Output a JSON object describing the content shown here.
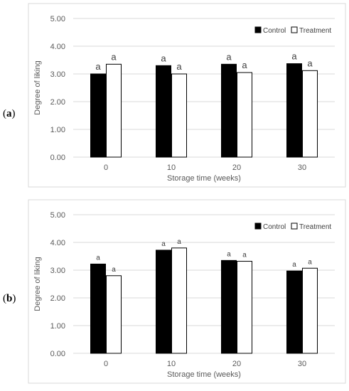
{
  "panels": [
    {
      "label": "a"
    },
    {
      "label": "b"
    }
  ],
  "chart_data": [
    {
      "type": "bar",
      "categories": [
        "0",
        "10",
        "20",
        "30"
      ],
      "series": [
        {
          "name": "Control",
          "values": [
            3.0,
            3.3,
            3.35,
            3.37
          ],
          "labels": [
            "a",
            "a",
            "a",
            "a"
          ],
          "color": "#000000"
        },
        {
          "name": "Treatment",
          "values": [
            3.35,
            3.0,
            3.05,
            3.12
          ],
          "labels": [
            "a",
            "a",
            "a",
            "a"
          ],
          "color": "#ffffff"
        }
      ],
      "yticks": [
        "0.00",
        "1.00",
        "2.00",
        "3.00",
        "4.00",
        "5.00"
      ],
      "xlabel": "Storage time (weeks)",
      "ylabel": "Degree of liking",
      "ylim": [
        0,
        5
      ],
      "grid": true,
      "legend": "top-right"
    },
    {
      "type": "bar",
      "categories": [
        "0",
        "10",
        "20",
        "30"
      ],
      "series": [
        {
          "name": "Control",
          "values": [
            3.22,
            3.72,
            3.35,
            2.97
          ],
          "labels": [
            "a",
            "a",
            "a",
            "a"
          ],
          "color": "#000000"
        },
        {
          "name": "Treatment",
          "values": [
            2.8,
            3.8,
            3.32,
            3.07
          ],
          "labels": [
            "a",
            "a",
            "a",
            "a"
          ],
          "color": "#ffffff"
        }
      ],
      "yticks": [
        "0.00",
        "1.00",
        "2.00",
        "3.00",
        "4.00",
        "5.00"
      ],
      "xlabel": "Storage time (weeks)",
      "ylabel": "Degree of liking",
      "ylim": [
        0,
        5
      ],
      "grid": true,
      "legend": "top-right"
    }
  ]
}
